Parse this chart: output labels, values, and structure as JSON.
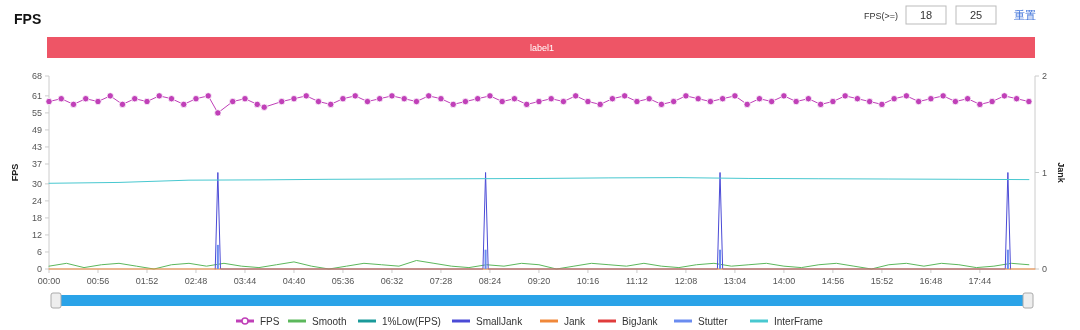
{
  "chart_data": {
    "type": "line",
    "title": "FPS",
    "ylabel": "FPS",
    "y2label": "Jank",
    "annotations": [
      "label1",
      "FPS(>=)",
      "18",
      "25",
      "重置"
    ],
    "xlim": [
      0,
      1127
    ],
    "xticks": [
      {
        "value": 0,
        "label": "00:00"
      },
      {
        "value": 56,
        "label": "00:56"
      },
      {
        "value": 112,
        "label": "01:52"
      },
      {
        "value": 168,
        "label": "02:48"
      },
      {
        "value": 224,
        "label": "03:44"
      },
      {
        "value": 280,
        "label": "04:40"
      },
      {
        "value": 336,
        "label": "05:36"
      },
      {
        "value": 392,
        "label": "06:32"
      },
      {
        "value": 448,
        "label": "07:28"
      },
      {
        "value": 504,
        "label": "08:24"
      },
      {
        "value": 560,
        "label": "09:20"
      },
      {
        "value": 616,
        "label": "10:16"
      },
      {
        "value": 672,
        "label": "11:12"
      },
      {
        "value": 728,
        "label": "12:08"
      },
      {
        "value": 784,
        "label": "13:04"
      },
      {
        "value": 840,
        "label": "14:00"
      },
      {
        "value": 896,
        "label": "14:56"
      },
      {
        "value": 952,
        "label": "15:52"
      },
      {
        "value": 1008,
        "label": "16:48"
      },
      {
        "value": 1064,
        "label": "17:44"
      }
    ],
    "ylim": [
      0,
      68
    ],
    "yticks": [
      0,
      6,
      12,
      18,
      24,
      30,
      37,
      43,
      49,
      55,
      61,
      68
    ],
    "y2lim": [
      0,
      2
    ],
    "y2ticks": [
      0,
      1,
      2
    ],
    "legend": "bottom",
    "grid": false,
    "line_style": "solid",
    "series": [
      {
        "name": "FPS",
        "color": "#c040b8",
        "marker": "circle",
        "x": [
          0,
          14,
          28,
          42,
          56,
          70,
          84,
          98,
          112,
          126,
          140,
          154,
          168,
          182,
          193,
          210,
          224,
          238,
          246,
          266,
          280,
          294,
          308,
          322,
          336,
          350,
          364,
          378,
          392,
          406,
          420,
          434,
          448,
          462,
          476,
          490,
          504,
          518,
          532,
          546,
          560,
          574,
          588,
          602,
          616,
          630,
          644,
          658,
          672,
          686,
          700,
          714,
          728,
          742,
          756,
          770,
          784,
          798,
          812,
          826,
          840,
          854,
          868,
          882,
          896,
          910,
          924,
          938,
          952,
          966,
          980,
          994,
          1008,
          1022,
          1036,
          1050,
          1064,
          1078,
          1092,
          1106,
          1120
        ],
        "values": [
          59,
          60,
          58,
          60,
          59,
          61,
          58,
          60,
          59,
          61,
          60,
          58,
          60,
          61,
          55,
          59,
          60,
          58,
          57,
          59,
          60,
          61,
          59,
          58,
          60,
          61,
          59,
          60,
          61,
          60,
          59,
          61,
          60,
          58,
          59,
          60,
          61,
          59,
          60,
          58,
          59,
          60,
          59,
          61,
          59,
          58,
          60,
          61,
          59,
          60,
          58,
          59,
          61,
          60,
          59,
          60,
          61,
          58,
          60,
          59,
          61,
          59,
          60,
          58,
          59,
          61,
          60,
          59,
          58,
          60,
          61,
          59,
          60,
          61,
          59,
          60,
          58,
          59,
          61,
          60,
          59
        ]
      },
      {
        "name": "Smooth",
        "color": "#5cb85c",
        "x": [
          0,
          20,
          40,
          60,
          80,
          100,
          120,
          140,
          160,
          180,
          200,
          220,
          240,
          260,
          280,
          300,
          320,
          340,
          360,
          380,
          400,
          420,
          440,
          460,
          480,
          500,
          520,
          540,
          560,
          580,
          600,
          620,
          640,
          660,
          680,
          700,
          720,
          740,
          760,
          780,
          800,
          820,
          840,
          860,
          880,
          900,
          920,
          940,
          960,
          980,
          1000,
          1020,
          1040,
          1060,
          1080,
          1100,
          1120
        ],
        "values": [
          1,
          2,
          0.5,
          1.5,
          2,
          1,
          0,
          1.5,
          2,
          1,
          2,
          1,
          0.5,
          1.5,
          2.5,
          1,
          0,
          1,
          2,
          1.5,
          1,
          3,
          2,
          1,
          0.5,
          1.5,
          1,
          2,
          1.5,
          0,
          1,
          2,
          1.5,
          1,
          2,
          1,
          0.5,
          1.5,
          2,
          1,
          1.5,
          2,
          1,
          0.5,
          1.5,
          2,
          1,
          0,
          1.5,
          2,
          1,
          2,
          1.5,
          0.5,
          1,
          2,
          1.5
        ]
      },
      {
        "name": "1%Low(FPS)",
        "color": "#1a9a9a"
      },
      {
        "name": "SmallJank",
        "color": "#4b4bd6",
        "axis": "y2",
        "x": [
          190,
          193,
          196,
          496,
          499,
          502,
          764,
          767,
          770,
          1093,
          1096,
          1099
        ],
        "values": [
          0,
          1,
          0,
          0,
          1,
          0,
          0,
          1,
          0,
          0,
          1,
          0
        ]
      },
      {
        "name": "Jank",
        "color": "#f0883a",
        "axis": "y2",
        "x": [
          0,
          1127
        ],
        "values": [
          0,
          0
        ]
      },
      {
        "name": "BigJank",
        "color": "#e03c3c"
      },
      {
        "name": "Stutter",
        "color": "#6a8cf0",
        "type": "bar",
        "axis": "y2",
        "x": [
          193,
          499,
          767,
          1096
        ],
        "values": [
          0.25,
          0.2,
          0.2,
          0.2
        ]
      },
      {
        "name": "InterFrame",
        "color": "#48c8d0",
        "x": [
          0,
          80,
          160,
          240,
          320,
          400,
          480,
          560,
          640,
          720,
          800,
          880,
          960,
          1040,
          1120
        ],
        "values": [
          30.2,
          30.5,
          31.3,
          31.4,
          31.6,
          31.7,
          31.8,
          31.9,
          32.1,
          32.2,
          31.9,
          31.8,
          31.7,
          31.6,
          31.5
        ]
      }
    ]
  }
}
